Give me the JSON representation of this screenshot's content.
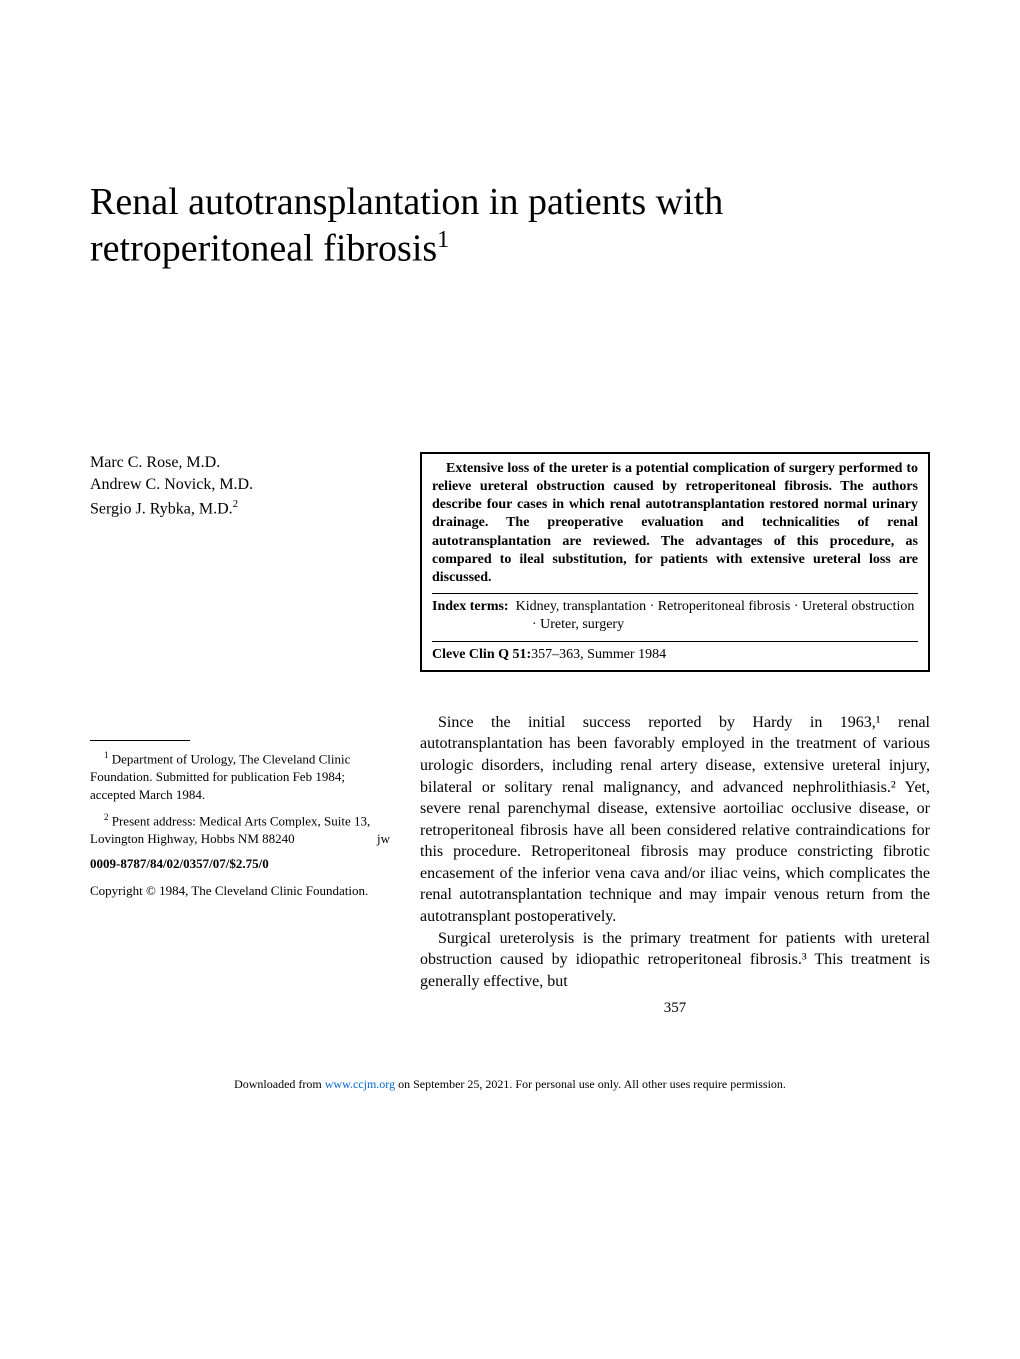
{
  "title": {
    "text": "Renal autotransplantation in patients with retroperitoneal fibrosis",
    "superscript": "1",
    "fontsize": 38
  },
  "authors": [
    {
      "name": "Marc C. Rose, M.D.",
      "superscript": ""
    },
    {
      "name": "Andrew C. Novick, M.D.",
      "superscript": ""
    },
    {
      "name": "Sergio J. Rybka, M.D.",
      "superscript": "2"
    }
  ],
  "footnotes": {
    "note1": {
      "superscript": "1",
      "text": "Department of Urology, The Cleveland Clinic Foundation. Submitted for publication Feb 1984; accepted March 1984."
    },
    "note2": {
      "superscript": "2",
      "text": "Present address: Medical Arts Complex, Suite 13, Lovington Highway, Hobbs NM 88240",
      "suffix": "jw"
    }
  },
  "issn": "0009-8787/84/02/0357/07/$2.75/0",
  "copyright": "Copyright © 1984, The Cleveland Clinic Foundation.",
  "abstract": {
    "text": "Extensive loss of the ureter is a potential complication of surgery performed to relieve ureteral obstruction caused by retroperitoneal fibrosis. The authors describe four cases in which renal autotransplantation restored normal urinary drainage. The preoperative evaluation and technicalities of renal autotransplantation are reviewed. The advantages of this procedure, as compared to ileal substitution, for patients with extensive ureteral loss are discussed.",
    "index_label": "Index terms:",
    "index_terms": "Kidney, transplantation · Retroperitoneal fibrosis · Ureteral obstruction · Ureter, surgery",
    "citation_label": "Cleve Clin Q 51:",
    "citation_text": "357–363, Summer 1984"
  },
  "body": {
    "para1": "Since the initial success reported by Hardy in 1963,¹ renal autotransplantation has been favorably employed in the treatment of various urologic disorders, including renal artery disease, extensive ureteral injury, bilateral or solitary renal malignancy, and advanced nephrolithiasis.² Yet, severe renal parenchymal disease, extensive aortoiliac occlusive disease, or retroperitoneal fibrosis have all been considered relative contraindications for this procedure. Retroperitoneal fibrosis may produce constricting fibrotic encasement of the inferior vena cava and/or iliac veins, which complicates the renal autotransplantation technique and may impair venous return from the autotransplant postoperatively.",
    "para2": "Surgical ureterolysis is the primary treatment for patients with ureteral obstruction caused by idiopathic retroperitoneal fibrosis.³ This treatment is generally effective, but"
  },
  "page_number": "357",
  "footer": {
    "prefix": "Downloaded from ",
    "link_text": "www.ccjm.org",
    "suffix": " on September 25, 2021. For personal use only. All other uses require permission."
  },
  "colors": {
    "background": "#ffffff",
    "text": "#000000",
    "link": "#0066cc",
    "border": "#000000"
  }
}
